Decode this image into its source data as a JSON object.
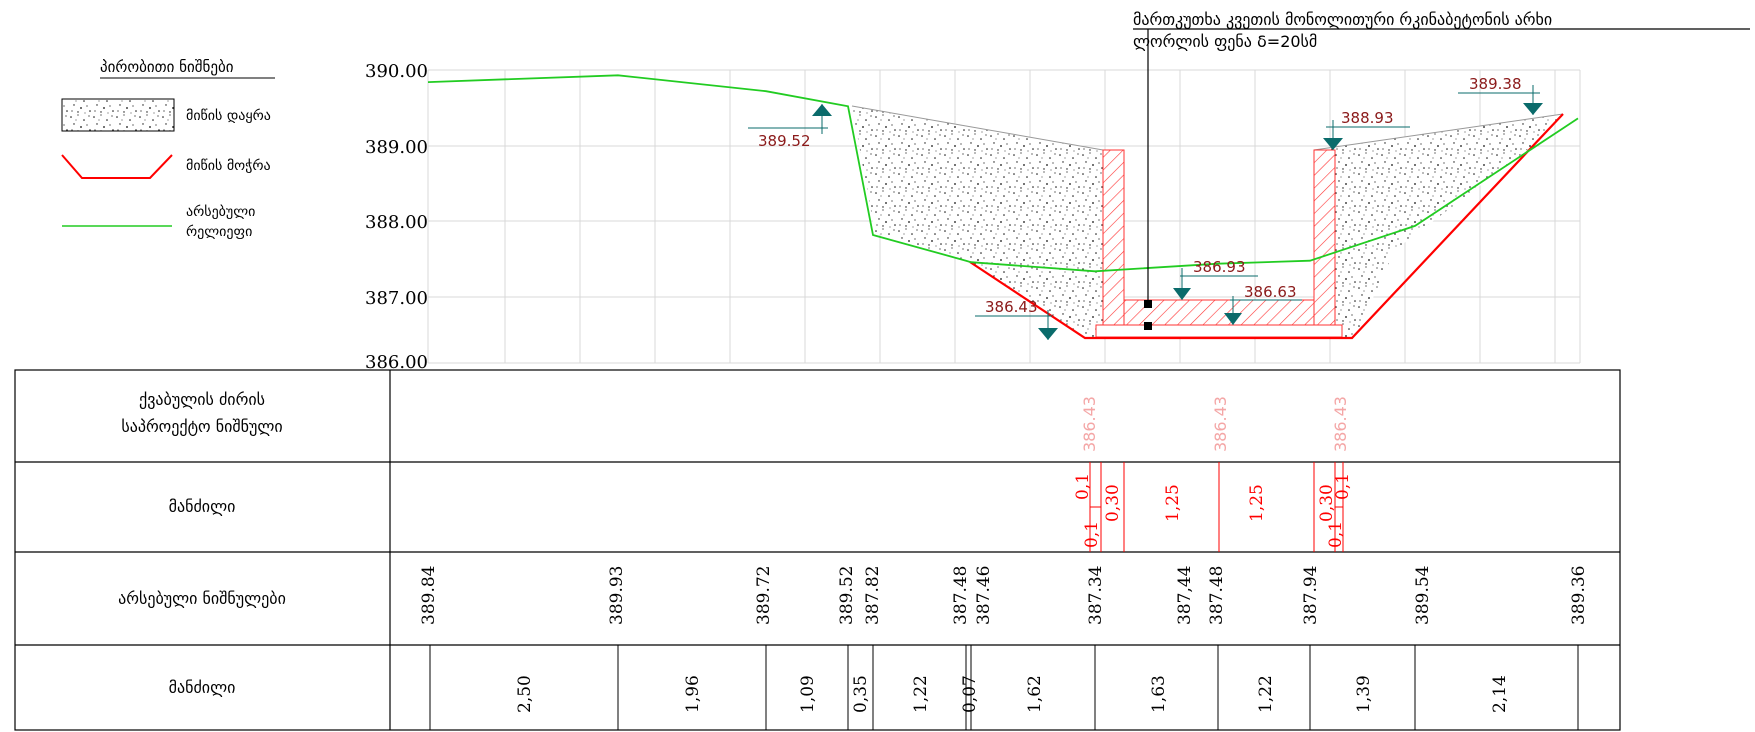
{
  "legend": {
    "title": "პირობითი ნიშნები",
    "items": [
      {
        "label": "მიწის დაყრა"
      },
      {
        "label": "მიწის მოჭრა"
      },
      {
        "label_lines": [
          "არსებული",
          "რელიეფი"
        ]
      }
    ]
  },
  "callout": {
    "lines": [
      "მართკუთხა კვეთის მონოლითური  რკინაბეტონის არხი",
      "ლორლის ფენა δ=20სმ"
    ]
  },
  "level_marks": [
    {
      "text": "389.52"
    },
    {
      "text": "389.38"
    },
    {
      "text": "388.93"
    },
    {
      "text": "386.93"
    },
    {
      "text": "386.63"
    },
    {
      "text": "386.43"
    }
  ],
  "table": {
    "row_labels": [
      [
        "ქვაბულის ძირის",
        "საპროექტო ნიშნული"
      ],
      [
        "მანძილი"
      ],
      [
        "არსებული ნიშნულები"
      ],
      [
        "მანძილი"
      ]
    ],
    "design_marks": [
      "386.43",
      "386.43",
      "386.43"
    ],
    "design_distances": [
      "0,1",
      "0,30",
      "0,1",
      "1,25",
      "1,25",
      "0,30",
      "0,1",
      "0,1"
    ],
    "existing_marks": [
      "389.84",
      "389.93",
      "389.72",
      "389.52",
      "387.82",
      "387.48",
      "387.46",
      "387.34",
      "387,44",
      "387.48",
      "387.94",
      "389.54",
      "389.36"
    ],
    "existing_distances": [
      "2,50",
      "1,96",
      "1,09",
      "0,35",
      "1,22",
      "0,07",
      "1,62",
      "1,63",
      "1,22",
      "1,39",
      "2,14"
    ]
  },
  "chart_data": {
    "type": "line",
    "title": "",
    "xlabel": "",
    "ylabel": "",
    "y_ticks": [
      "390.00",
      "389.00",
      "388.00",
      "387.00",
      "386.00"
    ],
    "ylim": [
      386.0,
      390.0
    ],
    "colors": {
      "terrain": "#22cc22",
      "cut": "#ff0000",
      "fill_pattern": "#000000",
      "channel_hatch": "#ff3333",
      "marker": "#0a6b6b",
      "mark_text": "#8b1a1a",
      "faded_mark": "#f4a6a6"
    },
    "series": [
      {
        "x": [
          0.0,
          2.5,
          4.46,
          5.55,
          5.9,
          7.12,
          7.19,
          8.81,
          10.44,
          11.66,
          13.05,
          15.19
        ],
        "y": [
          389.84,
          389.93,
          389.72,
          389.52,
          387.82,
          387.48,
          387.46,
          387.34,
          387.44,
          387.48,
          387.94,
          389.36
        ]
      }
    ]
  }
}
